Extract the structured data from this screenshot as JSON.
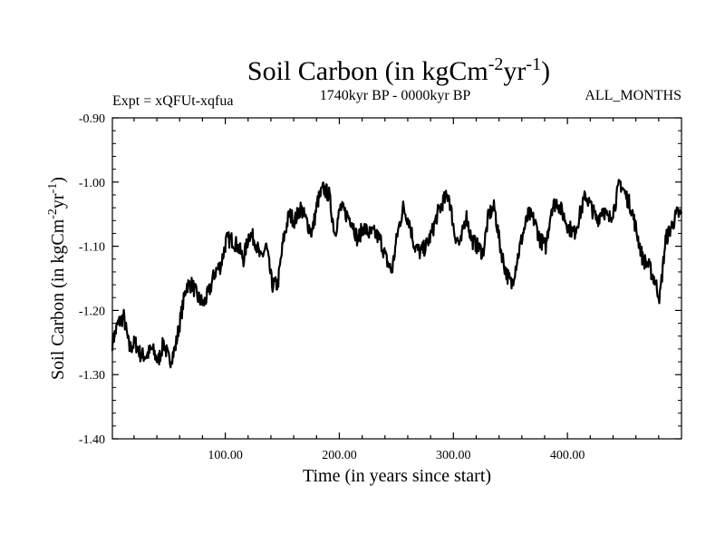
{
  "chart_data": {
    "type": "line",
    "title": {
      "prefix": "Soil Carbon (in kgCm",
      "sup1": "-2",
      "mid": "yr",
      "sup2": "-1",
      "suffix": ")"
    },
    "subtitle_left": "Expt = xQFUt-xqfua",
    "subtitle_center": "1740kyr BP - 0000kyr BP",
    "subtitle_right": "ALL_MONTHS",
    "xlabel": "Time (in years since start)",
    "ylabel": {
      "prefix": "Soil Carbon (in kgCm",
      "sup1": "-2",
      "mid": "yr",
      "sup2": "-1",
      "suffix": ")"
    },
    "xlim": [
      1,
      500
    ],
    "ylim": [
      -1.4,
      -0.9
    ],
    "xticks": [
      100,
      200,
      300,
      400
    ],
    "xtick_labels": [
      "100.00",
      "200.00",
      "300.00",
      "400.00"
    ],
    "yticks": [
      -1.4,
      -1.3,
      -1.2,
      -1.1,
      -1.0,
      -0.9
    ],
    "ytick_labels": [
      "-1.40",
      "-1.30",
      "-1.20",
      "-1.10",
      "-1.00",
      "-0.90"
    ],
    "line_color": "#000000",
    "series": [
      {
        "name": "Soil Carbon",
        "x_start": 1,
        "x_step": 5,
        "values": [
          -1.25,
          -1.22,
          -1.21,
          -1.26,
          -1.25,
          -1.27,
          -1.27,
          -1.26,
          -1.28,
          -1.25,
          -1.28,
          -1.26,
          -1.21,
          -1.16,
          -1.16,
          -1.18,
          -1.19,
          -1.17,
          -1.14,
          -1.13,
          -1.09,
          -1.09,
          -1.1,
          -1.12,
          -1.08,
          -1.09,
          -1.12,
          -1.1,
          -1.16,
          -1.16,
          -1.09,
          -1.05,
          -1.06,
          -1.04,
          -1.06,
          -1.08,
          -1.03,
          -1.01,
          -1.02,
          -1.08,
          -1.04,
          -1.05,
          -1.06,
          -1.09,
          -1.07,
          -1.08,
          -1.08,
          -1.09,
          -1.12,
          -1.14,
          -1.08,
          -1.04,
          -1.06,
          -1.1,
          -1.11,
          -1.1,
          -1.08,
          -1.05,
          -1.03,
          -1.02,
          -1.08,
          -1.1,
          -1.05,
          -1.09,
          -1.1,
          -1.11,
          -1.05,
          -1.04,
          -1.1,
          -1.14,
          -1.16,
          -1.12,
          -1.08,
          -1.05,
          -1.06,
          -1.09,
          -1.1,
          -1.04,
          -1.03,
          -1.05,
          -1.07,
          -1.08,
          -1.05,
          -1.02,
          -1.04,
          -1.06,
          -1.04,
          -1.06,
          -1.04,
          -1.0,
          -1.02,
          -1.04,
          -1.08,
          -1.12,
          -1.13,
          -1.15,
          -1.18,
          -1.09,
          -1.07,
          -1.05
        ]
      }
    ]
  }
}
